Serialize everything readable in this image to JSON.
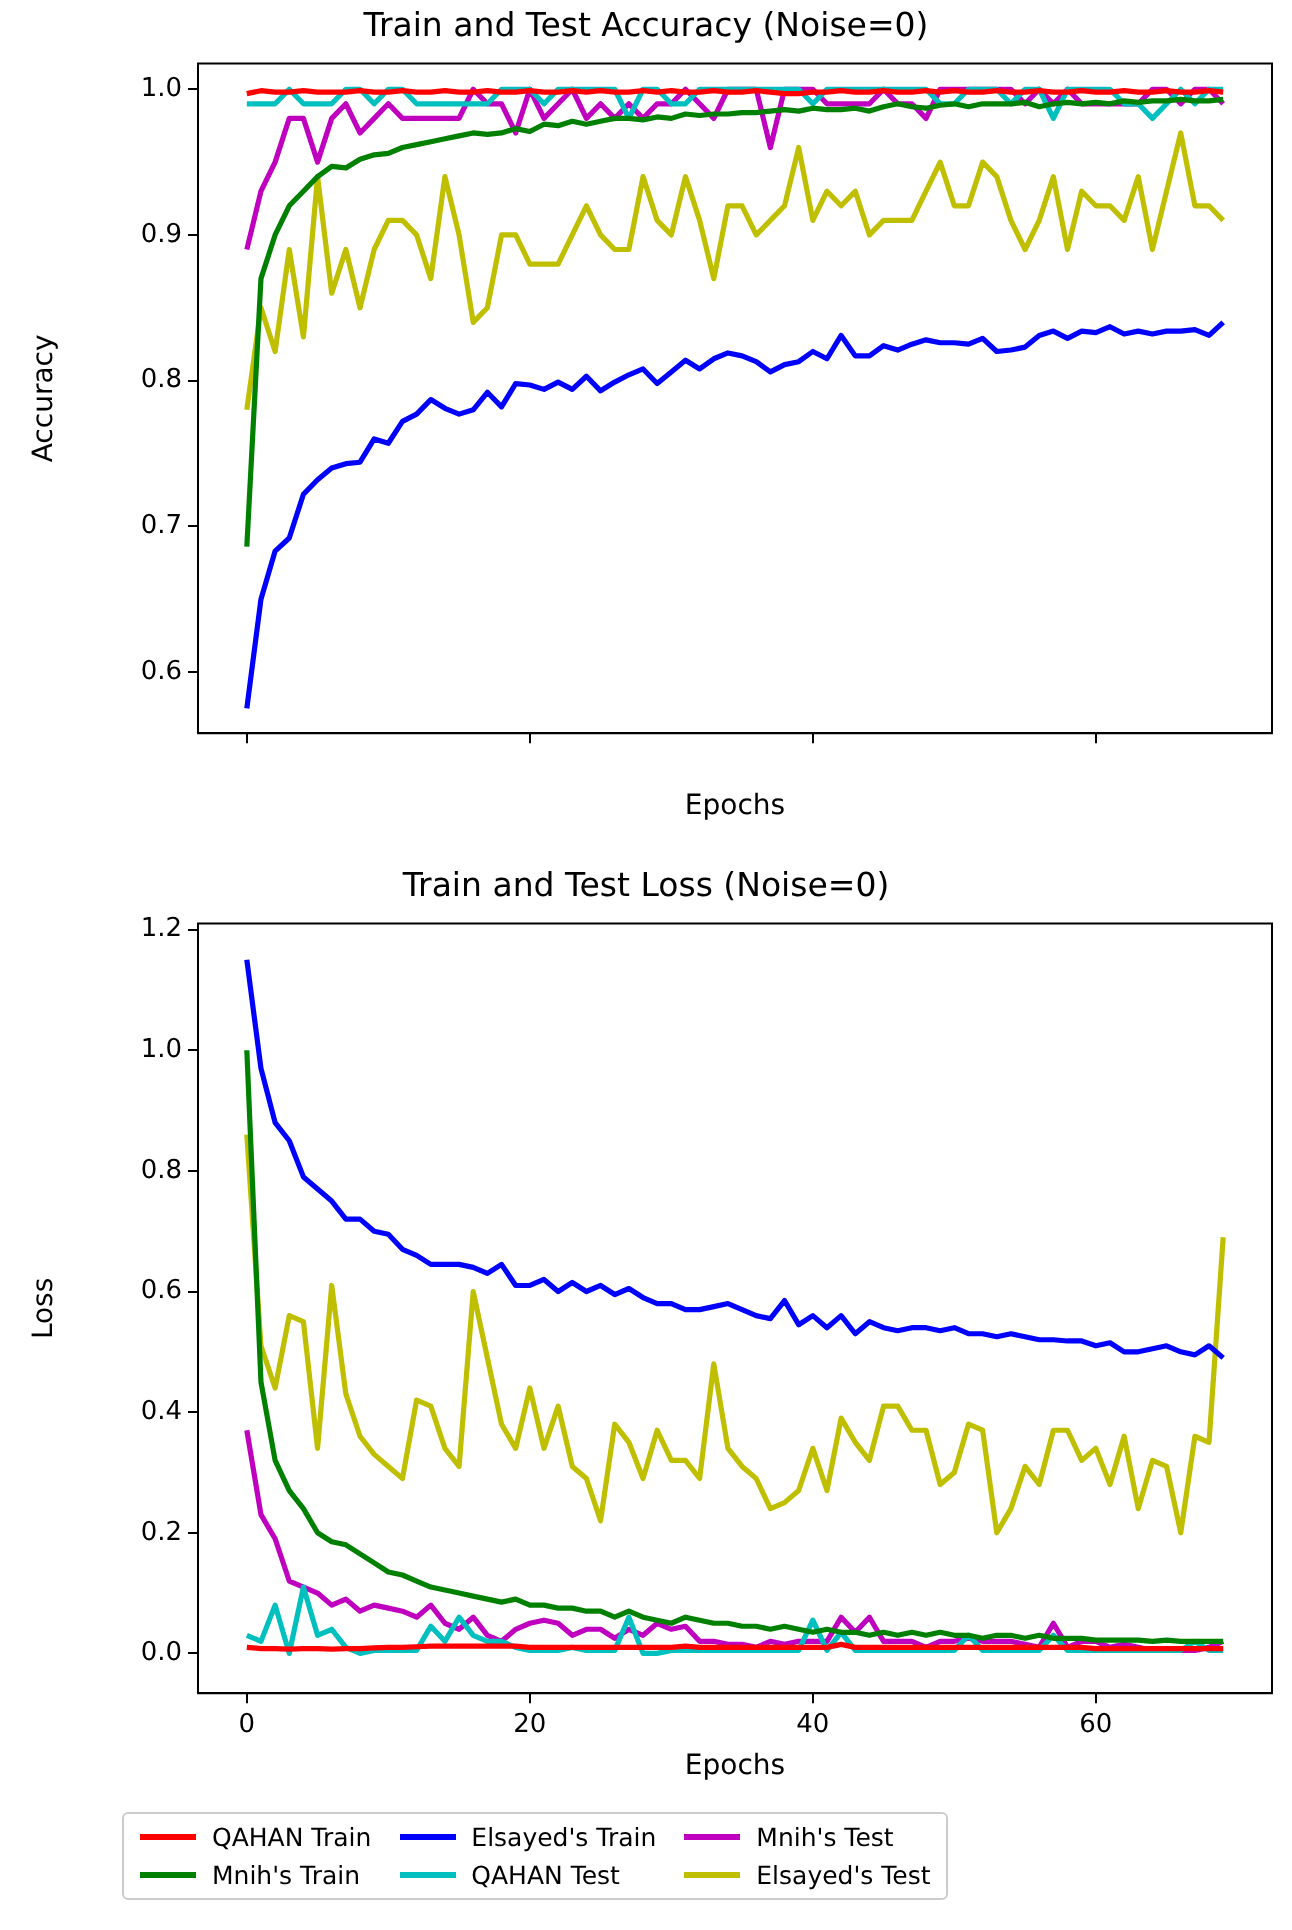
{
  "chart_data": [
    {
      "type": "line",
      "title": "Train and Test Accuracy (Noise=0)",
      "xlabel": "Epochs",
      "ylabel": "Accuracy",
      "x": [
        0,
        1,
        2,
        3,
        4,
        5,
        6,
        7,
        8,
        9,
        10,
        11,
        12,
        13,
        14,
        15,
        16,
        17,
        18,
        19,
        20,
        21,
        22,
        23,
        24,
        25,
        26,
        27,
        28,
        29,
        30,
        31,
        32,
        33,
        34,
        35,
        36,
        37,
        38,
        39,
        40,
        41,
        42,
        43,
        44,
        45,
        46,
        47,
        48,
        49,
        50,
        51,
        52,
        53,
        54,
        55,
        56,
        57,
        58,
        59,
        60,
        61,
        62,
        63,
        64,
        65,
        66,
        67,
        68,
        69
      ],
      "xlim": [
        -3.45,
        72.45
      ],
      "xticks": [
        0,
        20,
        40,
        60
      ],
      "ylim": [
        0.558,
        1.0176
      ],
      "yticks": [
        {
          "value": 0.6,
          "label": "0.6"
        },
        {
          "value": 0.7,
          "label": "0.7"
        },
        {
          "value": 0.8,
          "label": "0.8"
        },
        {
          "value": 0.9,
          "label": "0.9"
        },
        {
          "value": 1,
          "label": "1.0"
        }
      ],
      "tick_labels": "y",
      "grid": false,
      "legend": false,
      "marker": "none",
      "line_style": "solid",
      "series": [
        {
          "color": "#ff0000",
          "values": [
            0.997,
            0.999,
            0.998,
            0.998,
            0.999,
            0.998,
            0.998,
            0.998,
            0.999,
            0.998,
            0.998,
            0.999,
            0.998,
            0.998,
            0.999,
            0.998,
            0.998,
            0.999,
            0.998,
            0.998,
            0.999,
            0.998,
            0.998,
            0.999,
            0.998,
            0.999,
            0.998,
            0.998,
            0.999,
            0.998,
            0.999,
            0.998,
            0.998,
            0.999,
            0.998,
            0.998,
            0.999,
            0.998,
            0.997,
            0.997,
            0.998,
            0.998,
            0.999,
            0.998,
            0.998,
            0.999,
            0.998,
            0.998,
            0.999,
            0.998,
            0.999,
            0.998,
            0.998,
            0.999,
            0.998,
            0.998,
            0.999,
            0.998,
            0.998,
            0.999,
            0.998,
            0.998,
            0.999,
            0.998,
            0.998,
            0.999,
            0.998,
            0.998,
            0.999,
            0.998
          ]
        },
        {
          "color": "#008000",
          "values": [
            0.686,
            0.87,
            0.9,
            0.92,
            0.93,
            0.94,
            0.947,
            0.946,
            0.952,
            0.955,
            0.956,
            0.96,
            0.962,
            0.964,
            0.966,
            0.968,
            0.97,
            0.969,
            0.97,
            0.973,
            0.971,
            0.976,
            0.975,
            0.978,
            0.976,
            0.978,
            0.98,
            0.98,
            0.979,
            0.981,
            0.98,
            0.983,
            0.982,
            0.983,
            0.983,
            0.984,
            0.984,
            0.985,
            0.986,
            0.985,
            0.987,
            0.986,
            0.986,
            0.987,
            0.985,
            0.988,
            0.99,
            0.988,
            0.987,
            0.989,
            0.99,
            0.988,
            0.99,
            0.99,
            0.99,
            0.991,
            0.988,
            0.99,
            0.991,
            0.99,
            0.991,
            0.99,
            0.992,
            0.991,
            0.992,
            0.992,
            0.993,
            0.992,
            0.992,
            0.993
          ]
        },
        {
          "color": "#0000ff",
          "values": [
            0.575,
            0.65,
            0.683,
            0.692,
            0.722,
            0.732,
            0.74,
            0.743,
            0.744,
            0.76,
            0.757,
            0.772,
            0.777,
            0.787,
            0.781,
            0.777,
            0.78,
            0.792,
            0.782,
            0.798,
            0.797,
            0.794,
            0.799,
            0.794,
            0.803,
            0.793,
            0.799,
            0.804,
            0.808,
            0.798,
            0.806,
            0.814,
            0.808,
            0.815,
            0.819,
            0.817,
            0.813,
            0.806,
            0.811,
            0.813,
            0.82,
            0.815,
            0.831,
            0.817,
            0.817,
            0.824,
            0.821,
            0.825,
            0.828,
            0.826,
            0.826,
            0.825,
            0.829,
            0.82,
            0.821,
            0.823,
            0.831,
            0.834,
            0.829,
            0.834,
            0.833,
            0.837,
            0.832,
            0.834,
            0.832,
            0.834,
            0.834,
            0.835,
            0.831,
            0.84
          ]
        },
        {
          "color": "#00bfbf",
          "values": [
            0.99,
            0.99,
            0.99,
            1.0,
            0.99,
            0.99,
            0.99,
            1.0,
            1.0,
            0.99,
            1.0,
            1.0,
            0.99,
            0.99,
            0.99,
            0.99,
            0.99,
            0.99,
            1.0,
            1.0,
            1.0,
            0.99,
            1.0,
            1.0,
            1.0,
            1.0,
            1.0,
            0.98,
            1.0,
            1.0,
            0.99,
            0.99,
            1.0,
            1.0,
            1.0,
            1.0,
            1.0,
            1.0,
            1.0,
            1.0,
            0.99,
            1.0,
            1.0,
            1.0,
            1.0,
            1.0,
            1.0,
            1.0,
            1.0,
            0.99,
            0.99,
            1.0,
            1.0,
            1.0,
            0.99,
            1.0,
            1.0,
            0.98,
            1.0,
            1.0,
            1.0,
            1.0,
            0.99,
            0.99,
            0.98,
            0.99,
            1.0,
            0.99,
            1.0,
            1.0
          ]
        },
        {
          "color": "#bf00bf",
          "values": [
            0.89,
            0.93,
            0.95,
            0.98,
            0.98,
            0.95,
            0.98,
            0.99,
            0.97,
            0.98,
            0.99,
            0.98,
            0.98,
            0.98,
            0.98,
            0.98,
            1.0,
            0.99,
            0.99,
            0.97,
            1.0,
            0.98,
            0.99,
            1.0,
            0.98,
            0.99,
            0.98,
            0.99,
            0.98,
            0.99,
            0.99,
            1.0,
            0.99,
            0.98,
            1.0,
            1.0,
            1.0,
            0.96,
            1.0,
            1.0,
            1.0,
            0.99,
            0.99,
            0.99,
            0.99,
            1.0,
            0.99,
            0.99,
            0.98,
            1.0,
            1.0,
            1.0,
            1.0,
            1.0,
            1.0,
            0.99,
            1.0,
            0.99,
            1.0,
            0.99,
            0.99,
            0.99,
            0.99,
            0.99,
            1.0,
            1.0,
            0.99,
            1.0,
            1.0,
            0.99
          ]
        },
        {
          "color": "#bfbf00",
          "values": [
            0.78,
            0.85,
            0.82,
            0.89,
            0.83,
            0.94,
            0.86,
            0.89,
            0.85,
            0.89,
            0.91,
            0.91,
            0.9,
            0.87,
            0.94,
            0.9,
            0.84,
            0.85,
            0.9,
            0.9,
            0.88,
            0.88,
            0.88,
            0.9,
            0.92,
            0.9,
            0.89,
            0.89,
            0.94,
            0.91,
            0.9,
            0.94,
            0.91,
            0.87,
            0.92,
            0.92,
            0.9,
            0.91,
            0.92,
            0.96,
            0.91,
            0.93,
            0.92,
            0.93,
            0.9,
            0.91,
            0.91,
            0.91,
            0.93,
            0.95,
            0.92,
            0.92,
            0.95,
            0.94,
            0.91,
            0.89,
            0.91,
            0.94,
            0.89,
            0.93,
            0.92,
            0.92,
            0.91,
            0.94,
            0.89,
            0.93,
            0.97,
            0.92,
            0.92,
            0.91
          ]
        }
      ]
    },
    {
      "type": "line",
      "title": "Train and Test Loss (Noise=0)",
      "xlabel": "Epochs",
      "ylabel": "Loss",
      "x": [
        0,
        1,
        2,
        3,
        4,
        5,
        6,
        7,
        8,
        9,
        10,
        11,
        12,
        13,
        14,
        15,
        16,
        17,
        18,
        19,
        20,
        21,
        22,
        23,
        24,
        25,
        26,
        27,
        28,
        29,
        30,
        31,
        32,
        33,
        34,
        35,
        36,
        37,
        38,
        39,
        40,
        41,
        42,
        43,
        44,
        45,
        46,
        47,
        48,
        49,
        50,
        51,
        52,
        53,
        54,
        55,
        56,
        57,
        58,
        59,
        60,
        61,
        62,
        63,
        64,
        65,
        66,
        67,
        68,
        69
      ],
      "xlim": [
        -3.45,
        72.45
      ],
      "xticks": [
        0,
        20,
        40,
        60
      ],
      "ylim": [
        -0.066,
        1.21
      ],
      "yticks": [
        {
          "value": 0,
          "label": "0.0"
        },
        0.2,
        0.4,
        0.6,
        0.8,
        {
          "value": 1,
          "label": "1.0"
        },
        1.2
      ],
      "grid": false,
      "legend": "bottom",
      "marker": "none",
      "line_style": "solid",
      "series": [
        {
          "name": "QAHAN Train",
          "color": "#ff0000",
          "values": [
            0.01,
            0.008,
            0.008,
            0.007,
            0.008,
            0.008,
            0.007,
            0.008,
            0.008,
            0.009,
            0.01,
            0.01,
            0.011,
            0.012,
            0.012,
            0.012,
            0.012,
            0.012,
            0.012,
            0.012,
            0.01,
            0.01,
            0.01,
            0.01,
            0.01,
            0.01,
            0.01,
            0.01,
            0.01,
            0.01,
            0.01,
            0.012,
            0.01,
            0.01,
            0.01,
            0.01,
            0.01,
            0.01,
            0.01,
            0.01,
            0.01,
            0.01,
            0.015,
            0.01,
            0.01,
            0.01,
            0.01,
            0.01,
            0.01,
            0.01,
            0.01,
            0.01,
            0.01,
            0.01,
            0.01,
            0.01,
            0.01,
            0.01,
            0.01,
            0.01,
            0.008,
            0.008,
            0.008,
            0.008,
            0.008,
            0.008,
            0.008,
            0.008,
            0.008,
            0.008
          ]
        },
        {
          "name": "Mnih's Train",
          "color": "#008000",
          "values": [
            1.0,
            0.45,
            0.32,
            0.27,
            0.24,
            0.2,
            0.185,
            0.18,
            0.165,
            0.15,
            0.135,
            0.13,
            0.12,
            0.11,
            0.105,
            0.1,
            0.095,
            0.09,
            0.085,
            0.09,
            0.08,
            0.08,
            0.075,
            0.075,
            0.07,
            0.07,
            0.06,
            0.07,
            0.06,
            0.055,
            0.05,
            0.06,
            0.055,
            0.05,
            0.05,
            0.045,
            0.045,
            0.04,
            0.045,
            0.04,
            0.035,
            0.04,
            0.035,
            0.035,
            0.03,
            0.035,
            0.03,
            0.035,
            0.03,
            0.035,
            0.03,
            0.03,
            0.025,
            0.03,
            0.03,
            0.025,
            0.03,
            0.025,
            0.025,
            0.025,
            0.022,
            0.022,
            0.022,
            0.022,
            0.02,
            0.022,
            0.02,
            0.02,
            0.02,
            0.02
          ]
        },
        {
          "name": "Elsayed's Train",
          "color": "#0000ff",
          "values": [
            1.15,
            0.97,
            0.88,
            0.85,
            0.79,
            0.77,
            0.75,
            0.72,
            0.72,
            0.7,
            0.695,
            0.67,
            0.66,
            0.645,
            0.645,
            0.645,
            0.64,
            0.63,
            0.645,
            0.61,
            0.61,
            0.62,
            0.6,
            0.615,
            0.6,
            0.61,
            0.595,
            0.605,
            0.59,
            0.58,
            0.58,
            0.57,
            0.57,
            0.575,
            0.58,
            0.57,
            0.56,
            0.555,
            0.585,
            0.545,
            0.56,
            0.54,
            0.56,
            0.53,
            0.55,
            0.54,
            0.535,
            0.54,
            0.54,
            0.535,
            0.54,
            0.53,
            0.53,
            0.525,
            0.53,
            0.525,
            0.52,
            0.52,
            0.518,
            0.518,
            0.51,
            0.515,
            0.5,
            0.5,
            0.505,
            0.51,
            0.5,
            0.495,
            0.51,
            0.49
          ]
        },
        {
          "name": "QAHAN Test",
          "color": "#00bfbf",
          "values": [
            0.03,
            0.02,
            0.08,
            0.0,
            0.11,
            0.03,
            0.04,
            0.01,
            0.0,
            0.005,
            0.005,
            0.005,
            0.005,
            0.045,
            0.02,
            0.06,
            0.03,
            0.02,
            0.02,
            0.01,
            0.005,
            0.005,
            0.005,
            0.01,
            0.005,
            0.005,
            0.005,
            0.06,
            0.0,
            0.0,
            0.005,
            0.005,
            0.005,
            0.005,
            0.005,
            0.005,
            0.005,
            0.005,
            0.005,
            0.005,
            0.055,
            0.005,
            0.035,
            0.005,
            0.005,
            0.005,
            0.005,
            0.005,
            0.005,
            0.005,
            0.005,
            0.03,
            0.005,
            0.005,
            0.005,
            0.005,
            0.005,
            0.03,
            0.005,
            0.005,
            0.005,
            0.005,
            0.005,
            0.005,
            0.005,
            0.005,
            0.005,
            0.02,
            0.005,
            0.005
          ]
        },
        {
          "name": "Mnih's Test",
          "color": "#bf00bf",
          "values": [
            0.37,
            0.23,
            0.19,
            0.12,
            0.11,
            0.1,
            0.08,
            0.09,
            0.07,
            0.08,
            0.075,
            0.07,
            0.06,
            0.08,
            0.05,
            0.04,
            0.06,
            0.03,
            0.02,
            0.04,
            0.05,
            0.055,
            0.05,
            0.03,
            0.04,
            0.04,
            0.025,
            0.04,
            0.03,
            0.05,
            0.04,
            0.045,
            0.02,
            0.02,
            0.015,
            0.015,
            0.01,
            0.02,
            0.015,
            0.02,
            0.02,
            0.02,
            0.06,
            0.035,
            0.06,
            0.02,
            0.02,
            0.02,
            0.01,
            0.02,
            0.02,
            0.025,
            0.02,
            0.02,
            0.02,
            0.015,
            0.01,
            0.05,
            0.01,
            0.02,
            0.02,
            0.01,
            0.015,
            0.01,
            0.005,
            0.005,
            0.005,
            0.005,
            0.01,
            0.02
          ]
        },
        {
          "name": "Elsayed's Test",
          "color": "#bfbf00",
          "values": [
            0.86,
            0.51,
            0.44,
            0.56,
            0.55,
            0.34,
            0.61,
            0.43,
            0.36,
            0.33,
            0.31,
            0.29,
            0.42,
            0.41,
            0.34,
            0.31,
            0.6,
            0.49,
            0.38,
            0.34,
            0.44,
            0.34,
            0.41,
            0.31,
            0.29,
            0.22,
            0.38,
            0.35,
            0.29,
            0.37,
            0.32,
            0.32,
            0.29,
            0.48,
            0.34,
            0.31,
            0.29,
            0.24,
            0.25,
            0.27,
            0.34,
            0.27,
            0.39,
            0.35,
            0.32,
            0.41,
            0.41,
            0.37,
            0.37,
            0.28,
            0.3,
            0.38,
            0.37,
            0.2,
            0.24,
            0.31,
            0.28,
            0.37,
            0.37,
            0.32,
            0.34,
            0.28,
            0.36,
            0.24,
            0.32,
            0.31,
            0.2,
            0.36,
            0.35,
            0.69
          ]
        }
      ]
    }
  ]
}
